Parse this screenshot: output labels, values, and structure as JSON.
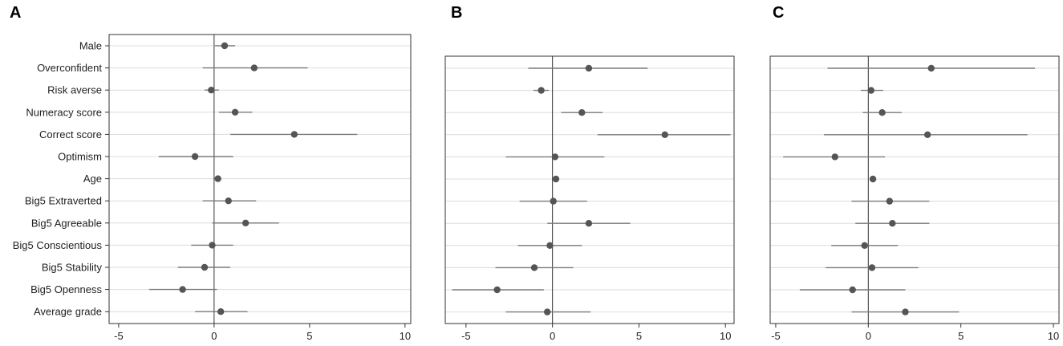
{
  "chart_data": [
    {
      "type": "scatter",
      "panel_label": "A",
      "categories": [
        "Male",
        "Overconfident",
        "Risk averse",
        "Numeracy score",
        "Correct score",
        "Optimism",
        "Age",
        "Big5 Extraverted",
        "Big5 Agreeable",
        "Big5 Conscientious",
        "Big5 Stability",
        "Big5 Openness",
        "Average grade"
      ],
      "estimates": [
        0.55,
        2.1,
        -0.15,
        1.1,
        4.2,
        -1.0,
        0.2,
        0.75,
        1.65,
        -0.1,
        -0.5,
        -1.65,
        0.35
      ],
      "ci_low": [
        0.05,
        -0.6,
        -0.5,
        0.25,
        0.85,
        -2.9,
        0.1,
        -0.6,
        -0.1,
        -1.2,
        -1.9,
        -3.4,
        -1.0
      ],
      "ci_high": [
        1.1,
        4.9,
        0.25,
        2.0,
        7.5,
        1.0,
        0.3,
        2.2,
        3.4,
        1.0,
        0.85,
        0.15,
        1.75
      ],
      "x_ticks": [
        "-5",
        "0",
        "5",
        "10"
      ],
      "xlim": [
        -5.5,
        10.3
      ],
      "zero_line": true,
      "grid": true
    },
    {
      "type": "scatter",
      "panel_label": "B",
      "estimates": [
        2.1,
        -0.65,
        1.7,
        6.5,
        0.15,
        0.2,
        0.05,
        2.1,
        -0.15,
        -1.05,
        -3.2,
        -0.3
      ],
      "ci_low": [
        -1.4,
        -1.1,
        0.5,
        2.6,
        -2.7,
        0.1,
        -1.9,
        -0.3,
        -2.0,
        -3.3,
        -5.8,
        -2.7
      ],
      "ci_high": [
        5.5,
        -0.2,
        2.9,
        10.3,
        3.0,
        0.3,
        2.0,
        4.5,
        1.7,
        1.2,
        -0.5,
        2.2
      ],
      "x_ticks": [
        "-5",
        "0",
        "5",
        "10"
      ],
      "xlim": [
        -6.2,
        10.5
      ],
      "zero_line": true,
      "grid": true
    },
    {
      "type": "scatter",
      "panel_label": "C",
      "estimates": [
        3.4,
        0.15,
        0.75,
        3.2,
        -1.8,
        0.25,
        1.15,
        1.3,
        -0.2,
        0.2,
        -0.85,
        2.0
      ],
      "ci_low": [
        -2.2,
        -0.4,
        -0.3,
        -2.4,
        -4.6,
        0.15,
        -0.9,
        -0.7,
        -2.0,
        -2.3,
        -3.7,
        -0.9
      ],
      "ci_high": [
        9.0,
        0.8,
        1.8,
        8.6,
        0.9,
        0.35,
        3.3,
        3.3,
        1.6,
        2.7,
        2.0,
        4.9
      ],
      "x_ticks": [
        "-5",
        "0",
        "5",
        "10"
      ],
      "xlim": [
        -5.3,
        10.3
      ],
      "zero_line": true,
      "grid": true
    }
  ],
  "colors": {
    "marker": "#555555",
    "ci_line": "#7a7a7a",
    "grid": "#dcdcdc",
    "frame": "#333333",
    "zero_line": "#333333"
  }
}
